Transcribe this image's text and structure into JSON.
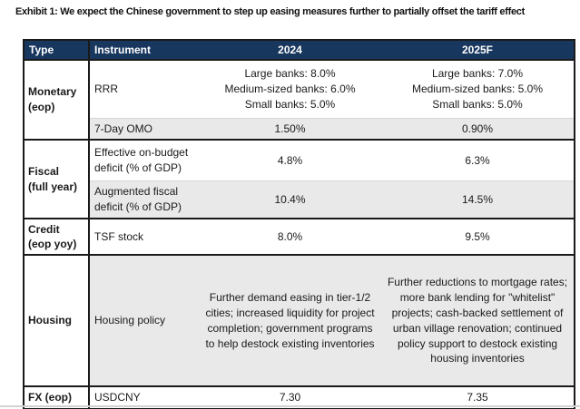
{
  "title": "Exhibit 1: We expect the Chinese government to step up easing measures further to partially offset the tariff effect",
  "colors": {
    "header_bg": "#17375E",
    "header_text": "#FFFFFF",
    "alt_row_bg": "#E9E9E9",
    "border": "#1A1A1A"
  },
  "table": {
    "headers": [
      "Type",
      "Instrument",
      "2024",
      "2025F"
    ],
    "rows": [
      {
        "type": "Monetary\n(eop)",
        "instrument": "RRR",
        "y2024": "Large banks: 8.0%\nMedium-sized banks: 6.0%\nSmall banks: 5.0%",
        "y2025": "Large banks: 7.0%\nMedium-sized banks: 5.0%\nSmall banks: 5.0%"
      },
      {
        "instrument": "7-Day OMO",
        "y2024": "1.50%",
        "y2025": "0.90%"
      },
      {
        "type": "Fiscal\n(full year)",
        "instrument": "Effective on-budget deficit (% of GDP)",
        "y2024": "4.8%",
        "y2025": "6.3%"
      },
      {
        "instrument": "Augmented fiscal deficit (% of GDP)",
        "y2024": "10.4%",
        "y2025": "14.5%"
      },
      {
        "type": "Credit\n(eop yoy)",
        "instrument": "TSF stock",
        "y2024": "8.0%",
        "y2025": "9.5%"
      },
      {
        "type": "Housing",
        "instrument": "Housing policy",
        "y2024": "Further demand easing in tier-1/2 cities; increased liquidity for project completion; government programs to help destock existing inventories",
        "y2025": "Further reductions to mortgage rates; more bank lending for \"whitelist\" projects; cash-backed settlement of urban village renovation; continued policy support to destock existing housing inventories"
      },
      {
        "type": "FX (eop)",
        "instrument": "USDCNY",
        "y2024": "7.30",
        "y2025": "7.35"
      }
    ]
  }
}
